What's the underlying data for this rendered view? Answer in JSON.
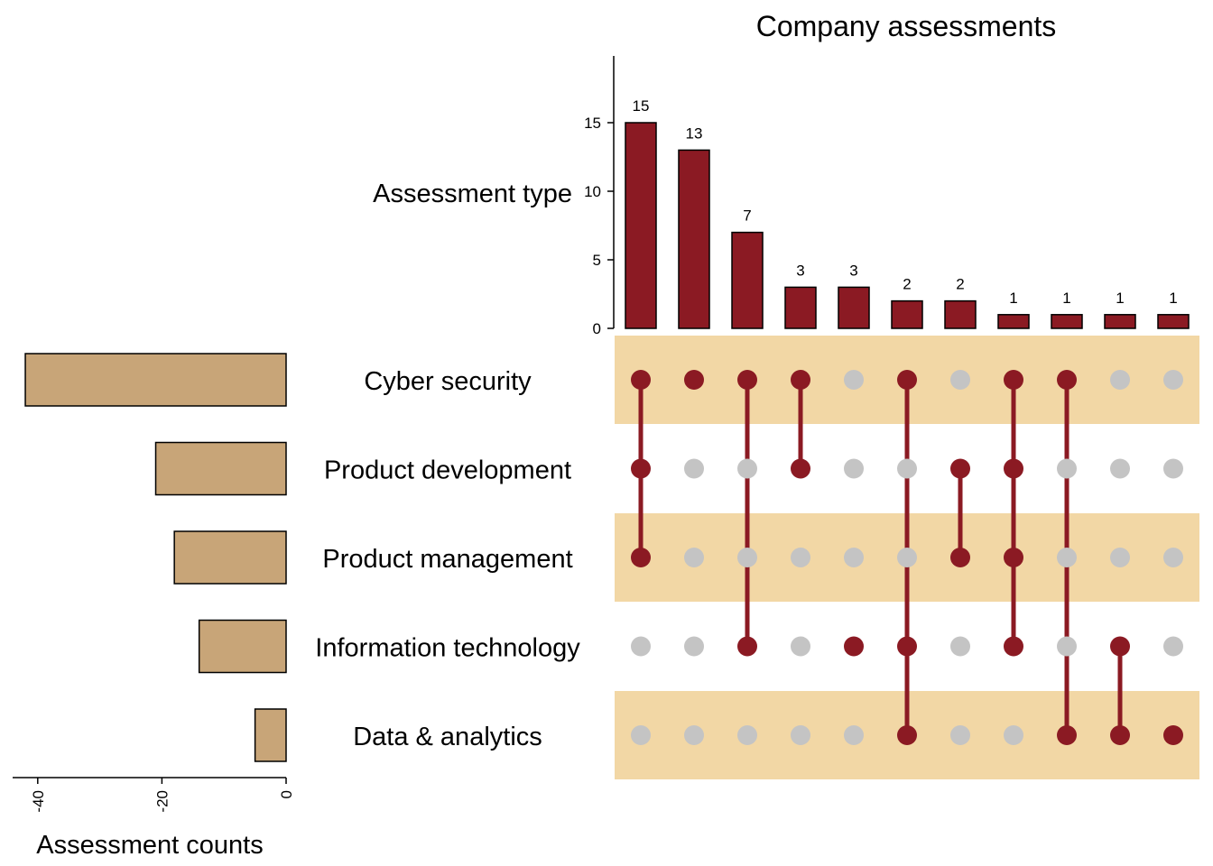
{
  "colors": {
    "bar": "#8b1a23",
    "set_bar": "#c8a578",
    "band": "#f2d7a5",
    "dot_on": "#8b1a23",
    "dot_off": "#c4c4c4"
  },
  "chart_data": {
    "type": "upset",
    "title": "Company assessments",
    "intersection_axis_label": "Assessment type",
    "set_axis_label": "Assessment counts",
    "sets": [
      "Cyber security",
      "Product development",
      "Product management",
      "Information technology",
      "Data & analytics"
    ],
    "set_sizes": [
      42,
      21,
      18,
      14,
      5
    ],
    "set_axis_ticks": [
      -40,
      -20,
      0
    ],
    "set_axis_range": [
      -44,
      0
    ],
    "intersection_axis_ticks": [
      0,
      5,
      10,
      15
    ],
    "intersection_axis_range": [
      0,
      20
    ],
    "intersections": [
      {
        "count": 15,
        "members": [
          0,
          1,
          2
        ]
      },
      {
        "count": 13,
        "members": [
          0
        ]
      },
      {
        "count": 7,
        "members": [
          0,
          3
        ]
      },
      {
        "count": 3,
        "members": [
          0,
          1
        ]
      },
      {
        "count": 3,
        "members": [
          3
        ]
      },
      {
        "count": 2,
        "members": [
          0,
          3,
          4
        ]
      },
      {
        "count": 2,
        "members": [
          1,
          2
        ]
      },
      {
        "count": 1,
        "members": [
          0,
          1,
          2,
          3
        ]
      },
      {
        "count": 1,
        "members": [
          0,
          4
        ]
      },
      {
        "count": 1,
        "members": [
          3,
          4
        ]
      },
      {
        "count": 1,
        "members": [
          4
        ]
      }
    ]
  }
}
